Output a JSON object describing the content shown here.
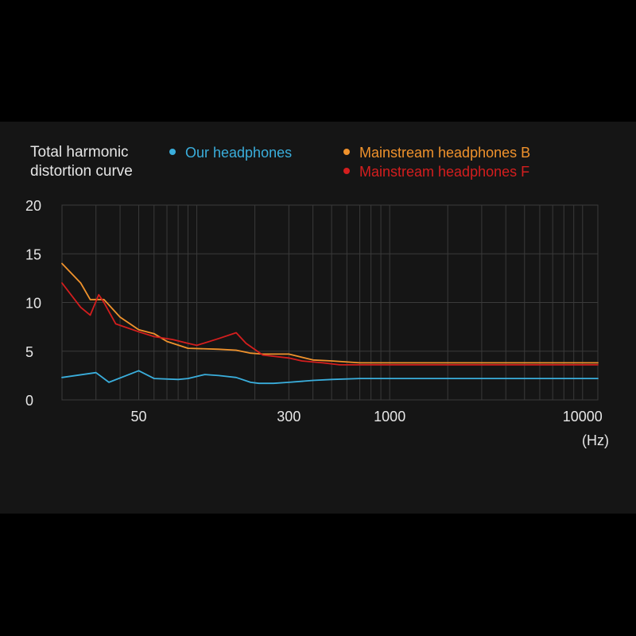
{
  "chart_data": {
    "type": "line",
    "title": "Total harmonic distortion curve",
    "xlabel": "(Hz)",
    "ylabel": "",
    "x_scale": "log",
    "xlim": [
      20,
      12000
    ],
    "ylim": [
      0,
      20
    ],
    "grid": true,
    "legend_position": "top",
    "x_ticks": [
      {
        "value": 50,
        "label": "50"
      },
      {
        "value": 300,
        "label": "300"
      },
      {
        "value": 1000,
        "label": "1000"
      },
      {
        "value": 10000,
        "label": "10000"
      }
    ],
    "y_ticks": [
      {
        "value": 0,
        "label": "0"
      },
      {
        "value": 5,
        "label": "5"
      },
      {
        "value": 10,
        "label": "10"
      },
      {
        "value": 15,
        "label": "15"
      },
      {
        "value": 20,
        "label": "20"
      }
    ],
    "series": [
      {
        "name": "Our headphones",
        "color": "#3aaedc",
        "points": [
          [
            20,
            2.3
          ],
          [
            30,
            2.8
          ],
          [
            35,
            1.8
          ],
          [
            50,
            3.0
          ],
          [
            60,
            2.2
          ],
          [
            80,
            2.1
          ],
          [
            90,
            2.2
          ],
          [
            110,
            2.6
          ],
          [
            130,
            2.5
          ],
          [
            160,
            2.3
          ],
          [
            190,
            1.8
          ],
          [
            210,
            1.7
          ],
          [
            250,
            1.7
          ],
          [
            300,
            1.8
          ],
          [
            400,
            2.0
          ],
          [
            500,
            2.1
          ],
          [
            700,
            2.2
          ],
          [
            1000,
            2.2
          ],
          [
            3000,
            2.2
          ],
          [
            10000,
            2.2
          ],
          [
            12000,
            2.2
          ]
        ]
      },
      {
        "name": "Mainstream headphones B",
        "color": "#f0922c",
        "points": [
          [
            20,
            14.0
          ],
          [
            25,
            12.0
          ],
          [
            28,
            10.3
          ],
          [
            33,
            10.3
          ],
          [
            40,
            8.5
          ],
          [
            50,
            7.2
          ],
          [
            60,
            6.8
          ],
          [
            70,
            6.0
          ],
          [
            90,
            5.3
          ],
          [
            130,
            5.2
          ],
          [
            160,
            5.1
          ],
          [
            190,
            4.8
          ],
          [
            220,
            4.7
          ],
          [
            300,
            4.7
          ],
          [
            400,
            4.1
          ],
          [
            500,
            4.0
          ],
          [
            700,
            3.8
          ],
          [
            1000,
            3.8
          ],
          [
            3000,
            3.8
          ],
          [
            10000,
            3.8
          ],
          [
            12000,
            3.8
          ]
        ]
      },
      {
        "name": "Mainstream headphones F",
        "color": "#d41e1e",
        "points": [
          [
            20,
            12.0
          ],
          [
            25,
            9.5
          ],
          [
            28,
            8.7
          ],
          [
            31,
            10.8
          ],
          [
            33,
            10.0
          ],
          [
            38,
            7.8
          ],
          [
            50,
            7.0
          ],
          [
            60,
            6.5
          ],
          [
            75,
            6.2
          ],
          [
            90,
            5.8
          ],
          [
            100,
            5.6
          ],
          [
            130,
            6.3
          ],
          [
            160,
            6.9
          ],
          [
            180,
            5.8
          ],
          [
            220,
            4.6
          ],
          [
            300,
            4.3
          ],
          [
            350,
            4.0
          ],
          [
            450,
            3.8
          ],
          [
            550,
            3.6
          ],
          [
            700,
            3.6
          ],
          [
            1000,
            3.6
          ],
          [
            3000,
            3.6
          ],
          [
            10000,
            3.6
          ],
          [
            12000,
            3.6
          ]
        ]
      }
    ]
  }
}
